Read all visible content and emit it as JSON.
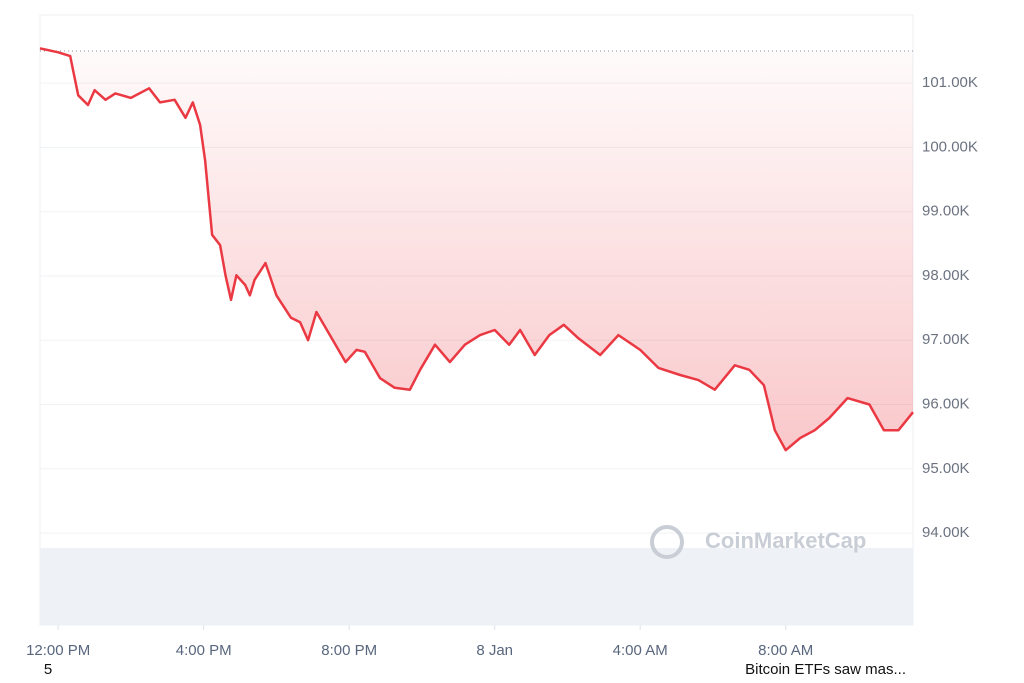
{
  "chart_data": {
    "type": "line",
    "x": [
      -0.5,
      0,
      0.33,
      0.55,
      0.82,
      1.0,
      1.3,
      1.57,
      2.0,
      2.5,
      2.8,
      3.2,
      3.5,
      3.7,
      3.9,
      4.04,
      4.23,
      4.45,
      4.6,
      4.75,
      4.9,
      5.14,
      5.27,
      5.4,
      5.7,
      6.0,
      6.4,
      6.65,
      6.87,
      7.1,
      7.47,
      7.9,
      8.2,
      8.43,
      8.85,
      9.25,
      9.67,
      9.95,
      10.36,
      10.77,
      11.18,
      11.6,
      12.0,
      12.4,
      12.7,
      13.1,
      13.5,
      13.9,
      14.3,
      14.9,
      15.4,
      16.0,
      16.5,
      17.1,
      17.6,
      18.05,
      18.6,
      19.0,
      19.4,
      19.7,
      20.0,
      20.4,
      20.8,
      21.2,
      21.7,
      22.3,
      22.7,
      23.1,
      23.5
    ],
    "values": [
      101540,
      101480,
      101420,
      100810,
      100660,
      100890,
      100740,
      100840,
      100770,
      100920,
      100700,
      100740,
      100460,
      100700,
      100350,
      99800,
      98640,
      98480,
      98010,
      97630,
      98010,
      97860,
      97700,
      97940,
      98200,
      97700,
      97350,
      97280,
      97000,
      97440,
      97080,
      96660,
      96850,
      96820,
      96410,
      96260,
      96230,
      96540,
      96930,
      96660,
      96930,
      97080,
      97160,
      96930,
      97160,
      96770,
      97080,
      97240,
      97030,
      96770,
      97080,
      96850,
      96570,
      96460,
      96380,
      96230,
      96610,
      96540,
      96300,
      95600,
      95290,
      95480,
      95600,
      95790,
      96100,
      96000,
      95600,
      95600,
      95880
    ],
    "color": "#ea3943",
    "baseline": 101500,
    "xlim": [
      -0.5,
      23.5
    ],
    "xticks": [
      {
        "value": 0,
        "label": "12:00 PM"
      },
      {
        "value": 4,
        "label": "4:00 PM"
      },
      {
        "value": 8,
        "label": "8:00 PM"
      },
      {
        "value": 12,
        "label": "8 Jan"
      },
      {
        "value": 16,
        "label": "4:00 AM"
      },
      {
        "value": 20,
        "label": "8:00 AM"
      }
    ],
    "ylim": [
      92570,
      102060
    ],
    "yticks": [
      {
        "value": 94000,
        "label": "94.00K"
      },
      {
        "value": 95000,
        "label": "95.00K"
      },
      {
        "value": 96000,
        "label": "96.00K"
      },
      {
        "value": 97000,
        "label": "97.00K"
      },
      {
        "value": 98000,
        "label": "98.00K"
      },
      {
        "value": 99000,
        "label": "99.00K"
      },
      {
        "value": 100000,
        "label": "100.00K"
      },
      {
        "value": 101000,
        "label": "101.00K"
      }
    ],
    "grid": true,
    "watermark": "CoinMarketCap",
    "footer_left": "5",
    "footer_right": "Bitcoin ETFs saw mas..."
  }
}
